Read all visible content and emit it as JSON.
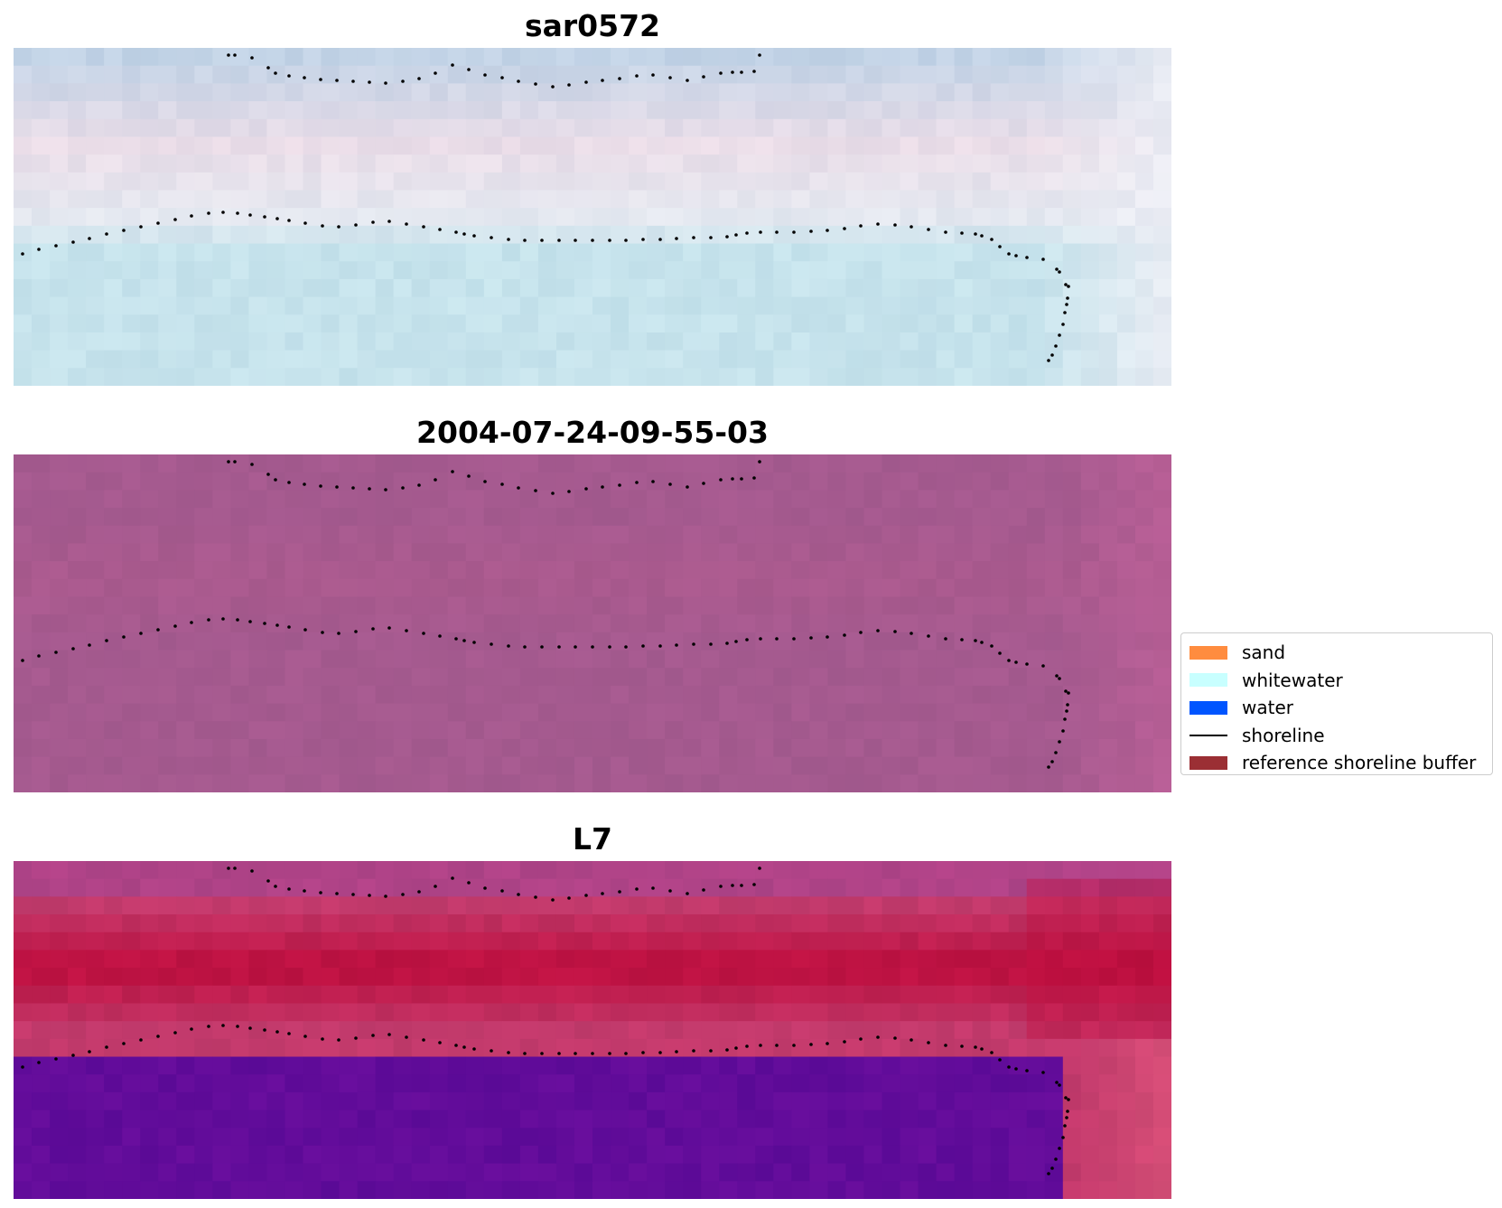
{
  "panels": [
    {
      "title": "sar0572",
      "style": "rgb"
    },
    {
      "title": "2004-07-24-09-55-03",
      "style": "index"
    },
    {
      "title": "L7",
      "style": "classified"
    }
  ],
  "legend": {
    "items": [
      {
        "label": "sand",
        "color": "#ff8c3f",
        "kind": "patch"
      },
      {
        "label": "whitewater",
        "color": "#c8ffff",
        "kind": "patch"
      },
      {
        "label": "water",
        "color": "#0055ff",
        "kind": "patch"
      },
      {
        "label": "shoreline",
        "color": "#000000",
        "kind": "line"
      },
      {
        "label": "reference shoreline buffer",
        "color": "#9b2f34",
        "kind": "patch"
      }
    ]
  },
  "colors": {
    "rgb_sky": "#c2d3e6",
    "rgb_pink": "#eadde8",
    "rgb_cyan": "#c6e3ec",
    "index_base": "#a55a8f",
    "class_buffer": "#c33a6c",
    "class_red": "#bd0c3c",
    "class_water": "#620c9a",
    "shoreline_points": "#000000"
  }
}
